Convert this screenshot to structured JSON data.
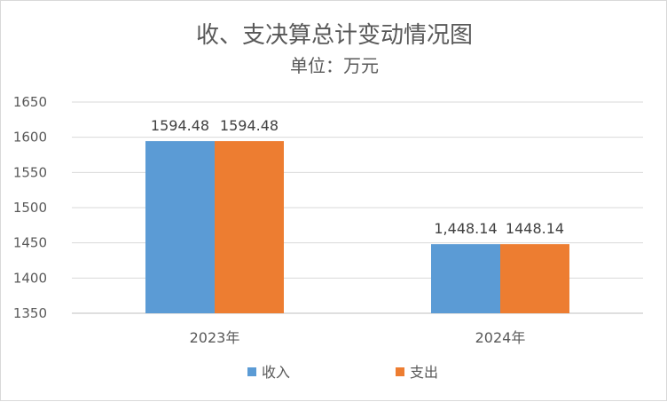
{
  "chart_data": {
    "type": "bar",
    "title": "收、支决算总计变动情况图",
    "subtitle": "单位：万元",
    "categories": [
      "2023年",
      "2024年"
    ],
    "series": [
      {
        "name": "收入",
        "values": [
          1594.48,
          1448.14
        ],
        "labels": [
          "1594.48",
          "1,448.14"
        ],
        "color": "#5B9BD5"
      },
      {
        "name": "支出",
        "values": [
          1594.48,
          1448.14
        ],
        "labels": [
          "1594.48",
          "1448.14"
        ],
        "color": "#ED7D31"
      }
    ],
    "ylim": [
      1350,
      1650
    ],
    "yticks": [
      "1650",
      "1600",
      "1550",
      "1500",
      "1450",
      "1400",
      "1350"
    ],
    "grid": true,
    "legend": "bottom"
  }
}
